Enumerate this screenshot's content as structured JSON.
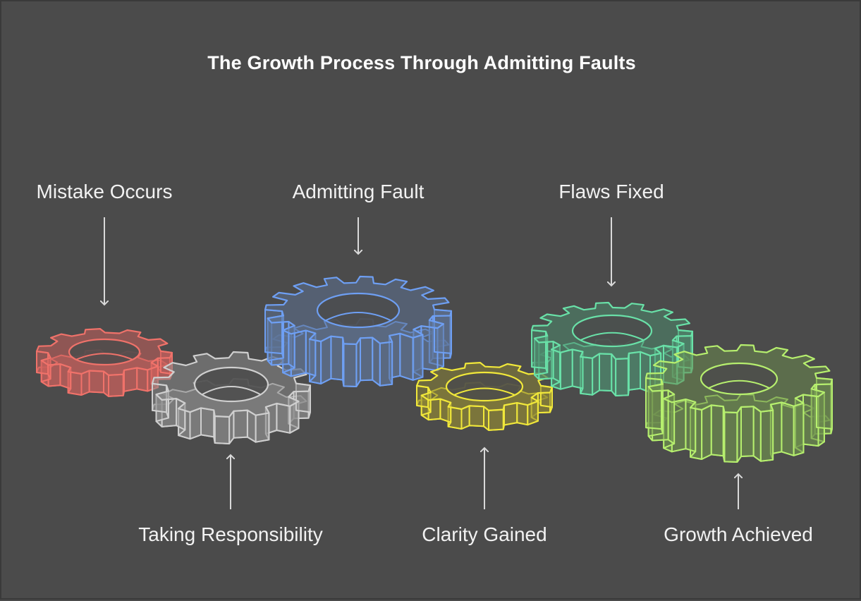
{
  "title": "The Growth Process Through Admitting Faults",
  "steps": [
    {
      "label": "Mistake Occurs",
      "color": "#f0726a",
      "fill": "#c9615d",
      "position": "top",
      "teeth": 10
    },
    {
      "label": "Taking Responsibility",
      "color": "#cfcfcf",
      "fill": "#8a8a8a",
      "position": "bottom",
      "teeth": 12
    },
    {
      "label": "Admitting Fault",
      "color": "#6e9ff3",
      "fill": "#5f7394",
      "position": "top",
      "teeth": 16
    },
    {
      "label": "Clarity Gained",
      "color": "#f1e83a",
      "fill": "#8b8436",
      "position": "bottom",
      "teeth": 10
    },
    {
      "label": "Flaws Fixed",
      "color": "#69e1a8",
      "fill": "#4e8a6e",
      "position": "top",
      "teeth": 14
    },
    {
      "label": "Growth Achieved",
      "color": "#b6ef6e",
      "fill": "#6c8a4e",
      "position": "bottom",
      "teeth": 16
    }
  ],
  "arrow_color": "#d9d9d9"
}
